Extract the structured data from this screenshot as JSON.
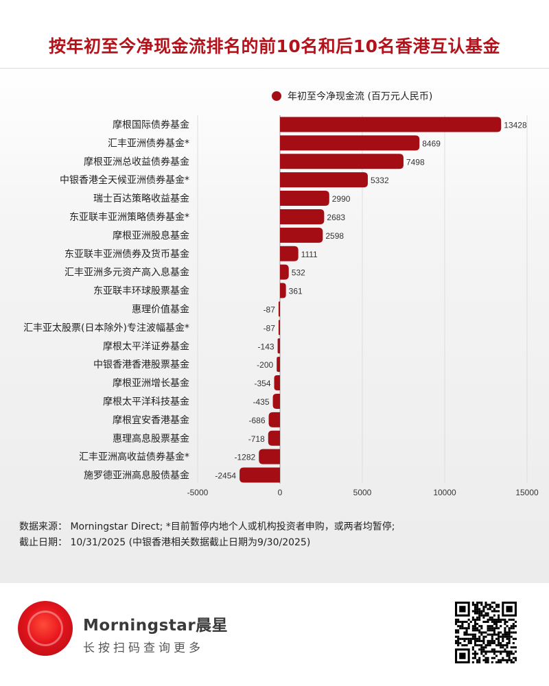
{
  "title": "按年初至今净现金流排名的前10名和后10名香港互认基金",
  "colors": {
    "accent": "#a50d14",
    "title": "#b3121b"
  },
  "legend_label": "年初至今净现金流 (百万元人民币)",
  "notes": {
    "source": "数据来源： Morningstar Direct; *目前暂停内地个人或机构投资者申购，或两者均暂停;",
    "date": "截止日期： 10/31/2025 (中银香港相关数据截止日期为9/30/2025)"
  },
  "footer": {
    "brand": "Morningstar晨星",
    "slogan": "长按扫码查询更多",
    "qr_icon": "qr-code-icon",
    "logo_icon": "morningstar-logo-icon"
  },
  "chart_data": {
    "type": "bar",
    "orientation": "horizontal",
    "title": "按年初至今净现金流排名的前10名和后10名香港互认基金",
    "xlabel": "",
    "ylabel": "",
    "xlim": [
      -5000,
      15000
    ],
    "xticks": [
      -5000,
      0,
      5000,
      10000,
      15000
    ],
    "grid": true,
    "legend_position": "top",
    "categories": [
      "摩根国际债券基金",
      "汇丰亚洲债券基金*",
      "摩根亚洲总收益债券基金",
      "中银香港全天候亚洲债券基金*",
      "瑞士百达策略收益基金",
      "东亚联丰亚洲策略债券基金*",
      "摩根亚洲股息基金",
      "东亚联丰亚洲债券及货币基金",
      "汇丰亚洲多元资产高入息基金",
      "东亚联丰环球股票基金",
      "惠理价值基金",
      "汇丰亚太股票(日本除外)专注波幅基金*",
      "摩根太平洋证券基金",
      "中银香港香港股票基金",
      "摩根亚洲增长基金",
      "摩根太平洋科技基金",
      "摩根宜安香港基金",
      "惠理高息股票基金",
      "汇丰亚洲高收益债券基金*",
      "施罗德亚洲高息股债基金"
    ],
    "series": [
      {
        "name": "年初至今净现金流 (百万元人民币)",
        "values": [
          13428,
          8469,
          7498,
          5332,
          2990,
          2683,
          2598,
          1111,
          532,
          361,
          -87,
          -87,
          -143,
          -200,
          -354,
          -435,
          -686,
          -718,
          -1282,
          -2454
        ]
      }
    ]
  }
}
